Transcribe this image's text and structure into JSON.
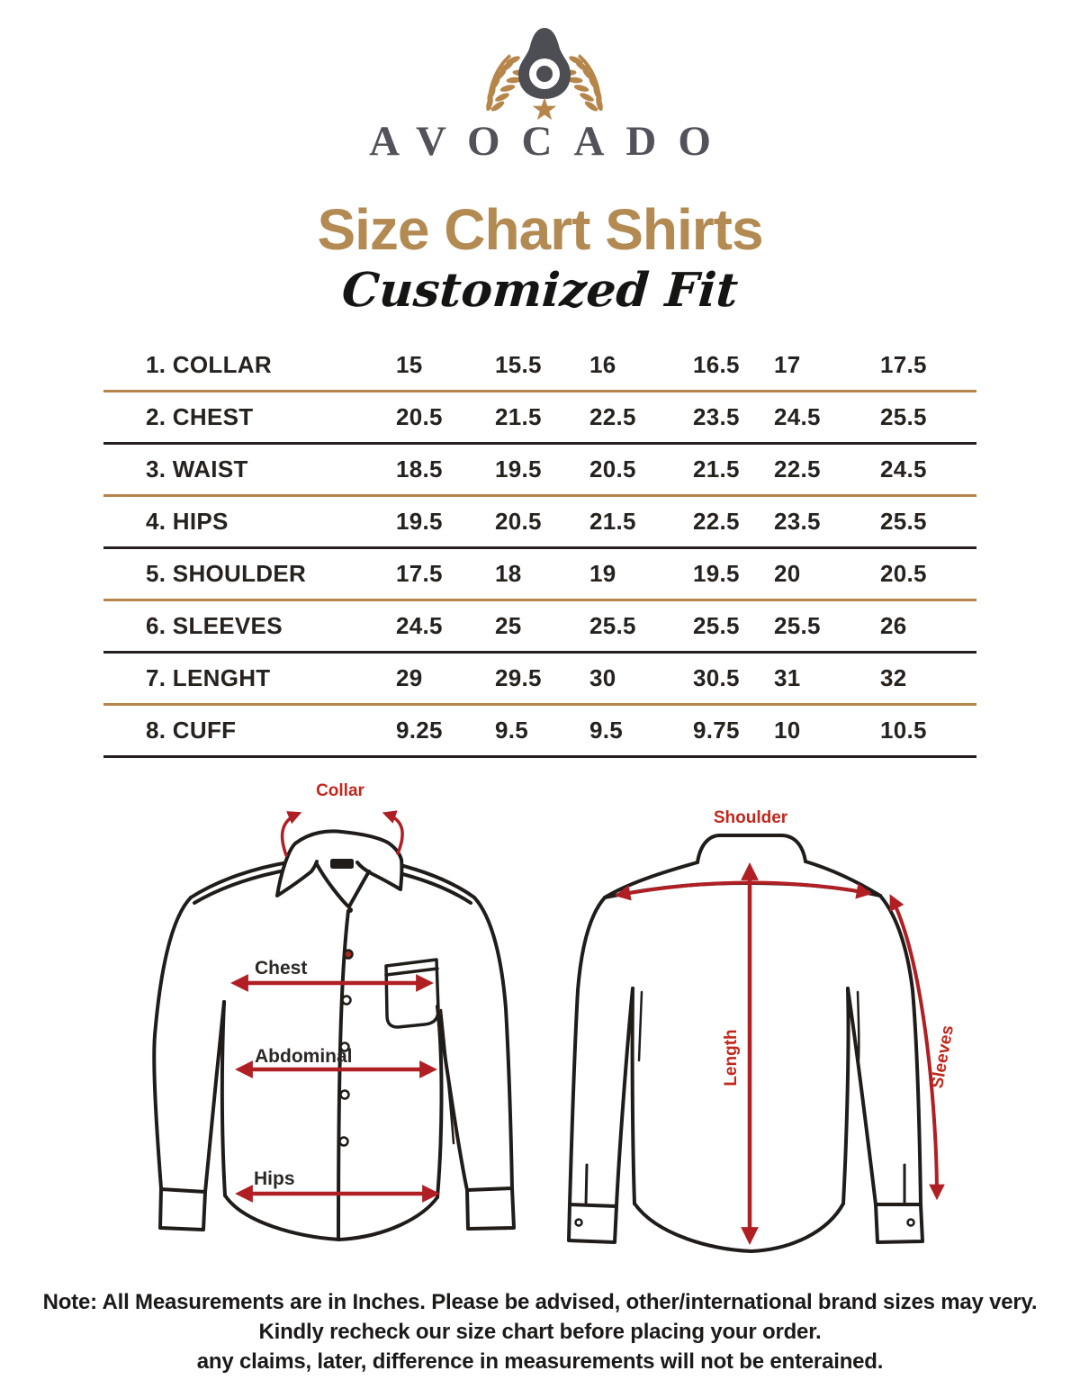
{
  "brand": "AVOCADO",
  "title": "Size Chart Shirts",
  "subtitle": "Customized Fit",
  "colors": {
    "title_gold": "#b28a52",
    "table_gold_line": "#b5854a",
    "table_dark_line": "#262120",
    "arrow_red": "#b01f23",
    "label_red": "#c1271c",
    "logo_gray": "#4d4d54"
  },
  "chart_data": {
    "type": "table",
    "title": "Size Chart Shirts - Customized Fit",
    "units": "Inches",
    "rows": [
      {
        "label": "1. COLLAR",
        "values": [
          "15",
          "15.5",
          "16",
          "16.5",
          "17",
          "17.5"
        ]
      },
      {
        "label": "2. CHEST",
        "values": [
          "20.5",
          "21.5",
          "22.5",
          "23.5",
          "24.5",
          "25.5"
        ]
      },
      {
        "label": "3. WAIST",
        "values": [
          "18.5",
          "19.5",
          "20.5",
          "21.5",
          "22.5",
          "24.5"
        ]
      },
      {
        "label": "4. HIPS",
        "values": [
          "19.5",
          "20.5",
          "21.5",
          "22.5",
          "23.5",
          "25.5"
        ]
      },
      {
        "label": "5. SHOULDER",
        "values": [
          "17.5",
          "18",
          "19",
          "19.5",
          "20",
          "20.5"
        ]
      },
      {
        "label": "6. SLEEVES",
        "values": [
          "24.5",
          "25",
          "25.5",
          "25.5",
          "25.5",
          "26"
        ]
      },
      {
        "label": "7. LENGHT",
        "values": [
          "29",
          "29.5",
          "30",
          "30.5",
          "31",
          "32"
        ]
      },
      {
        "label": "8. CUFF",
        "values": [
          "9.25",
          "9.5",
          "9.5",
          "9.75",
          "10",
          "10.5"
        ]
      }
    ]
  },
  "front_diagram": {
    "collar_label": "Collar",
    "chest_label": "Chest",
    "abdominal_label": "Abdominal",
    "hips_label": "Hips"
  },
  "back_diagram": {
    "shoulder_label": "Shoulder",
    "length_label": "Length",
    "sleeves_label": "Sleeves"
  },
  "note": {
    "line1": "Note: All Measurements are in Inches. Please be advised, other/international brand sizes may very.",
    "line2": "Kindly recheck our size chart before placing your order.",
    "line3": "any claims, later, difference in measurements will not be enterained."
  }
}
